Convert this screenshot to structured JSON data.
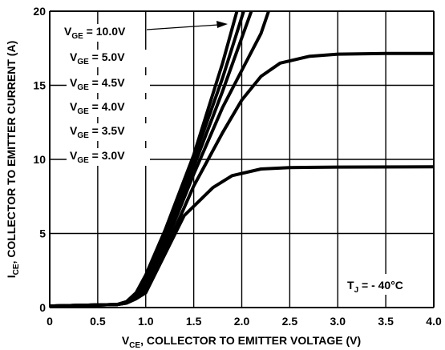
{
  "chart_data": {
    "type": "line",
    "xlim": [
      0,
      4
    ],
    "ylim": [
      0,
      20
    ],
    "x_ticks": [
      "0",
      "0.5",
      "1.0",
      "1.5",
      "2.0",
      "2.5",
      "3.0",
      "3.5",
      "4.0"
    ],
    "y_ticks": [
      "0",
      "5",
      "10",
      "15",
      "20"
    ],
    "grid": true,
    "xlabel": {
      "main": "V",
      "sub": "CE",
      "rest": ", COLLECTOR TO EMITTER VOLTAGE (V)"
    },
    "ylabel": {
      "main": "I",
      "sub": "CE",
      "rest": ", COLLECTOR TO EMITTER CURRENT (A)"
    },
    "annotation": {
      "main": "T",
      "sub": "J",
      "rest": " = - 40°C"
    },
    "legend": [
      {
        "main": "V",
        "sub": "GE",
        "rest": " = 10.0V"
      },
      {
        "main": "V",
        "sub": "GE",
        "rest": " = 5.0V"
      },
      {
        "main": "V",
        "sub": "GE",
        "rest": " = 4.5V"
      },
      {
        "main": "V",
        "sub": "GE",
        "rest": " = 4.0V"
      },
      {
        "main": "V",
        "sub": "GE",
        "rest": " = 3.5V"
      },
      {
        "main": "V",
        "sub": "GE",
        "rest": " = 3.0V"
      }
    ],
    "line_color": "#000000",
    "series": [
      {
        "points": [
          [
            0,
            0.1
          ],
          [
            0.3,
            0.15
          ],
          [
            0.7,
            0.2
          ],
          [
            0.8,
            0.4
          ],
          [
            0.9,
            1.0
          ],
          [
            1.0,
            2.2
          ],
          [
            1.2,
            5.2
          ],
          [
            1.5,
            10.3
          ],
          [
            1.8,
            16.5
          ],
          [
            1.95,
            20
          ]
        ]
      },
      {
        "points": [
          [
            0,
            0.1
          ],
          [
            0.3,
            0.15
          ],
          [
            0.7,
            0.2
          ],
          [
            0.8,
            0.4
          ],
          [
            0.9,
            0.9
          ],
          [
            1.0,
            1.8
          ],
          [
            1.2,
            4.8
          ],
          [
            1.5,
            10.0
          ],
          [
            1.8,
            15.5
          ],
          [
            2.02,
            20
          ]
        ]
      },
      {
        "points": [
          [
            0,
            0.1
          ],
          [
            0.3,
            0.15
          ],
          [
            0.7,
            0.2
          ],
          [
            0.8,
            0.35
          ],
          [
            0.9,
            0.8
          ],
          [
            1.0,
            1.5
          ],
          [
            1.2,
            4.5
          ],
          [
            1.5,
            9.5
          ],
          [
            1.8,
            14.6
          ],
          [
            2.1,
            20
          ]
        ]
      },
      {
        "points": [
          [
            0,
            0.1
          ],
          [
            0.3,
            0.15
          ],
          [
            0.7,
            0.2
          ],
          [
            0.8,
            0.3
          ],
          [
            0.9,
            0.7
          ],
          [
            1.0,
            1.3
          ],
          [
            1.2,
            4.2
          ],
          [
            1.5,
            9.0
          ],
          [
            1.8,
            13.5
          ],
          [
            2.0,
            16.0
          ],
          [
            2.2,
            18.5
          ],
          [
            2.28,
            20
          ]
        ]
      },
      {
        "points": [
          [
            0,
            0.1
          ],
          [
            0.3,
            0.15
          ],
          [
            0.7,
            0.2
          ],
          [
            0.8,
            0.3
          ],
          [
            0.9,
            0.6
          ],
          [
            1.0,
            1.1
          ],
          [
            1.2,
            3.8
          ],
          [
            1.5,
            8.2
          ],
          [
            1.8,
            11.8
          ],
          [
            2.0,
            14.0
          ],
          [
            2.2,
            15.6
          ],
          [
            2.4,
            16.5
          ],
          [
            2.7,
            16.95
          ],
          [
            3.0,
            17.1
          ],
          [
            3.5,
            17.15
          ],
          [
            4.0,
            17.15
          ]
        ]
      },
      {
        "points": [
          [
            0,
            0.1
          ],
          [
            0.3,
            0.15
          ],
          [
            0.7,
            0.2
          ],
          [
            0.8,
            0.3
          ],
          [
            0.9,
            0.6
          ],
          [
            1.0,
            1.0
          ],
          [
            1.2,
            3.6
          ],
          [
            1.4,
            6.2
          ],
          [
            1.7,
            8.1
          ],
          [
            1.9,
            8.9
          ],
          [
            2.2,
            9.35
          ],
          [
            2.5,
            9.45
          ],
          [
            3.0,
            9.48
          ],
          [
            4.0,
            9.5
          ]
        ]
      }
    ]
  }
}
